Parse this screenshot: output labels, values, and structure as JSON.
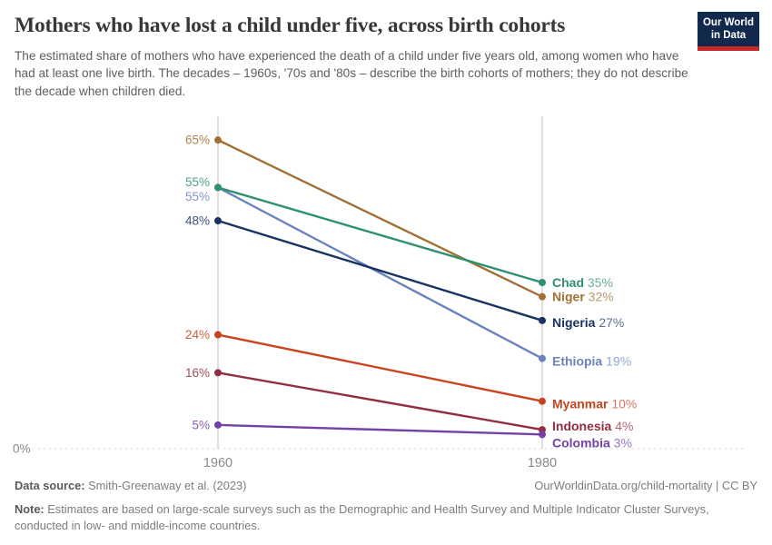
{
  "header": {
    "title": "Mothers who have lost a child under five, across birth cohorts",
    "subtitle": "The estimated share of mothers who have experienced the death of a child under five years old, among women who have had at least one live birth. The decades – 1960s, '70s and '80s – describe the birth cohorts of mothers; they do not describe the decade when children died.",
    "logo": {
      "line1": "Our World",
      "line2": "in Data",
      "bg_color": "#12294E",
      "bar_color": "#C62828"
    }
  },
  "chart_data": {
    "type": "line",
    "variant": "slope",
    "title": "Mothers who have lost a child under five, across birth cohorts",
    "x": [
      1960,
      1980
    ],
    "x_tick_labels": [
      "1960",
      "1980"
    ],
    "ylim": [
      0,
      70
    ],
    "unit": "%",
    "baseline_label": "0%",
    "grid": "zero-baseline-dashed-only",
    "legend_position": "end-of-line-labels",
    "series": [
      {
        "name": "Niger",
        "color": "#A26F35",
        "values": [
          65,
          32
        ],
        "labels": [
          "65%",
          "32%"
        ],
        "left_dy": 0,
        "right_dy": 0
      },
      {
        "name": "Ethiopia",
        "color": "#6B84BE",
        "values": [
          55,
          19
        ],
        "labels": [
          "55%",
          "19%"
        ],
        "left_dy": 10,
        "right_dy": 3
      },
      {
        "name": "Chad",
        "color": "#2F9070",
        "values": [
          55,
          35
        ],
        "labels": [
          "55%",
          "35%"
        ],
        "left_dy": -6,
        "right_dy": 0
      },
      {
        "name": "Nigeria",
        "color": "#173463",
        "values": [
          48,
          27
        ],
        "labels": [
          "48%",
          "27%"
        ],
        "left_dy": 0,
        "right_dy": 2
      },
      {
        "name": "Myanmar",
        "color": "#C8431F",
        "values": [
          24,
          10
        ],
        "labels": [
          "24%",
          "10%"
        ],
        "left_dy": 0,
        "right_dy": 3
      },
      {
        "name": "Indonesia",
        "color": "#912E40",
        "values": [
          16,
          4
        ],
        "labels": [
          "16%",
          "4%"
        ],
        "left_dy": 0,
        "right_dy": -4
      },
      {
        "name": "Colombia",
        "color": "#7441A8",
        "values": [
          5,
          3
        ],
        "labels": [
          "5%",
          "3%"
        ],
        "left_dy": 0,
        "right_dy": 9
      }
    ]
  },
  "footer": {
    "source_label": "Data source:",
    "source_value": "Smith-Greenaway et al. (2023)",
    "rights": "OurWorldinData.org/child-mortality | CC BY",
    "note_label": "Note:",
    "note_text": "Estimates are based on large-scale surveys such as the Demographic and Health Survey and Multiple Indicator Cluster Surveys, conducted in low- and middle-income countries."
  }
}
